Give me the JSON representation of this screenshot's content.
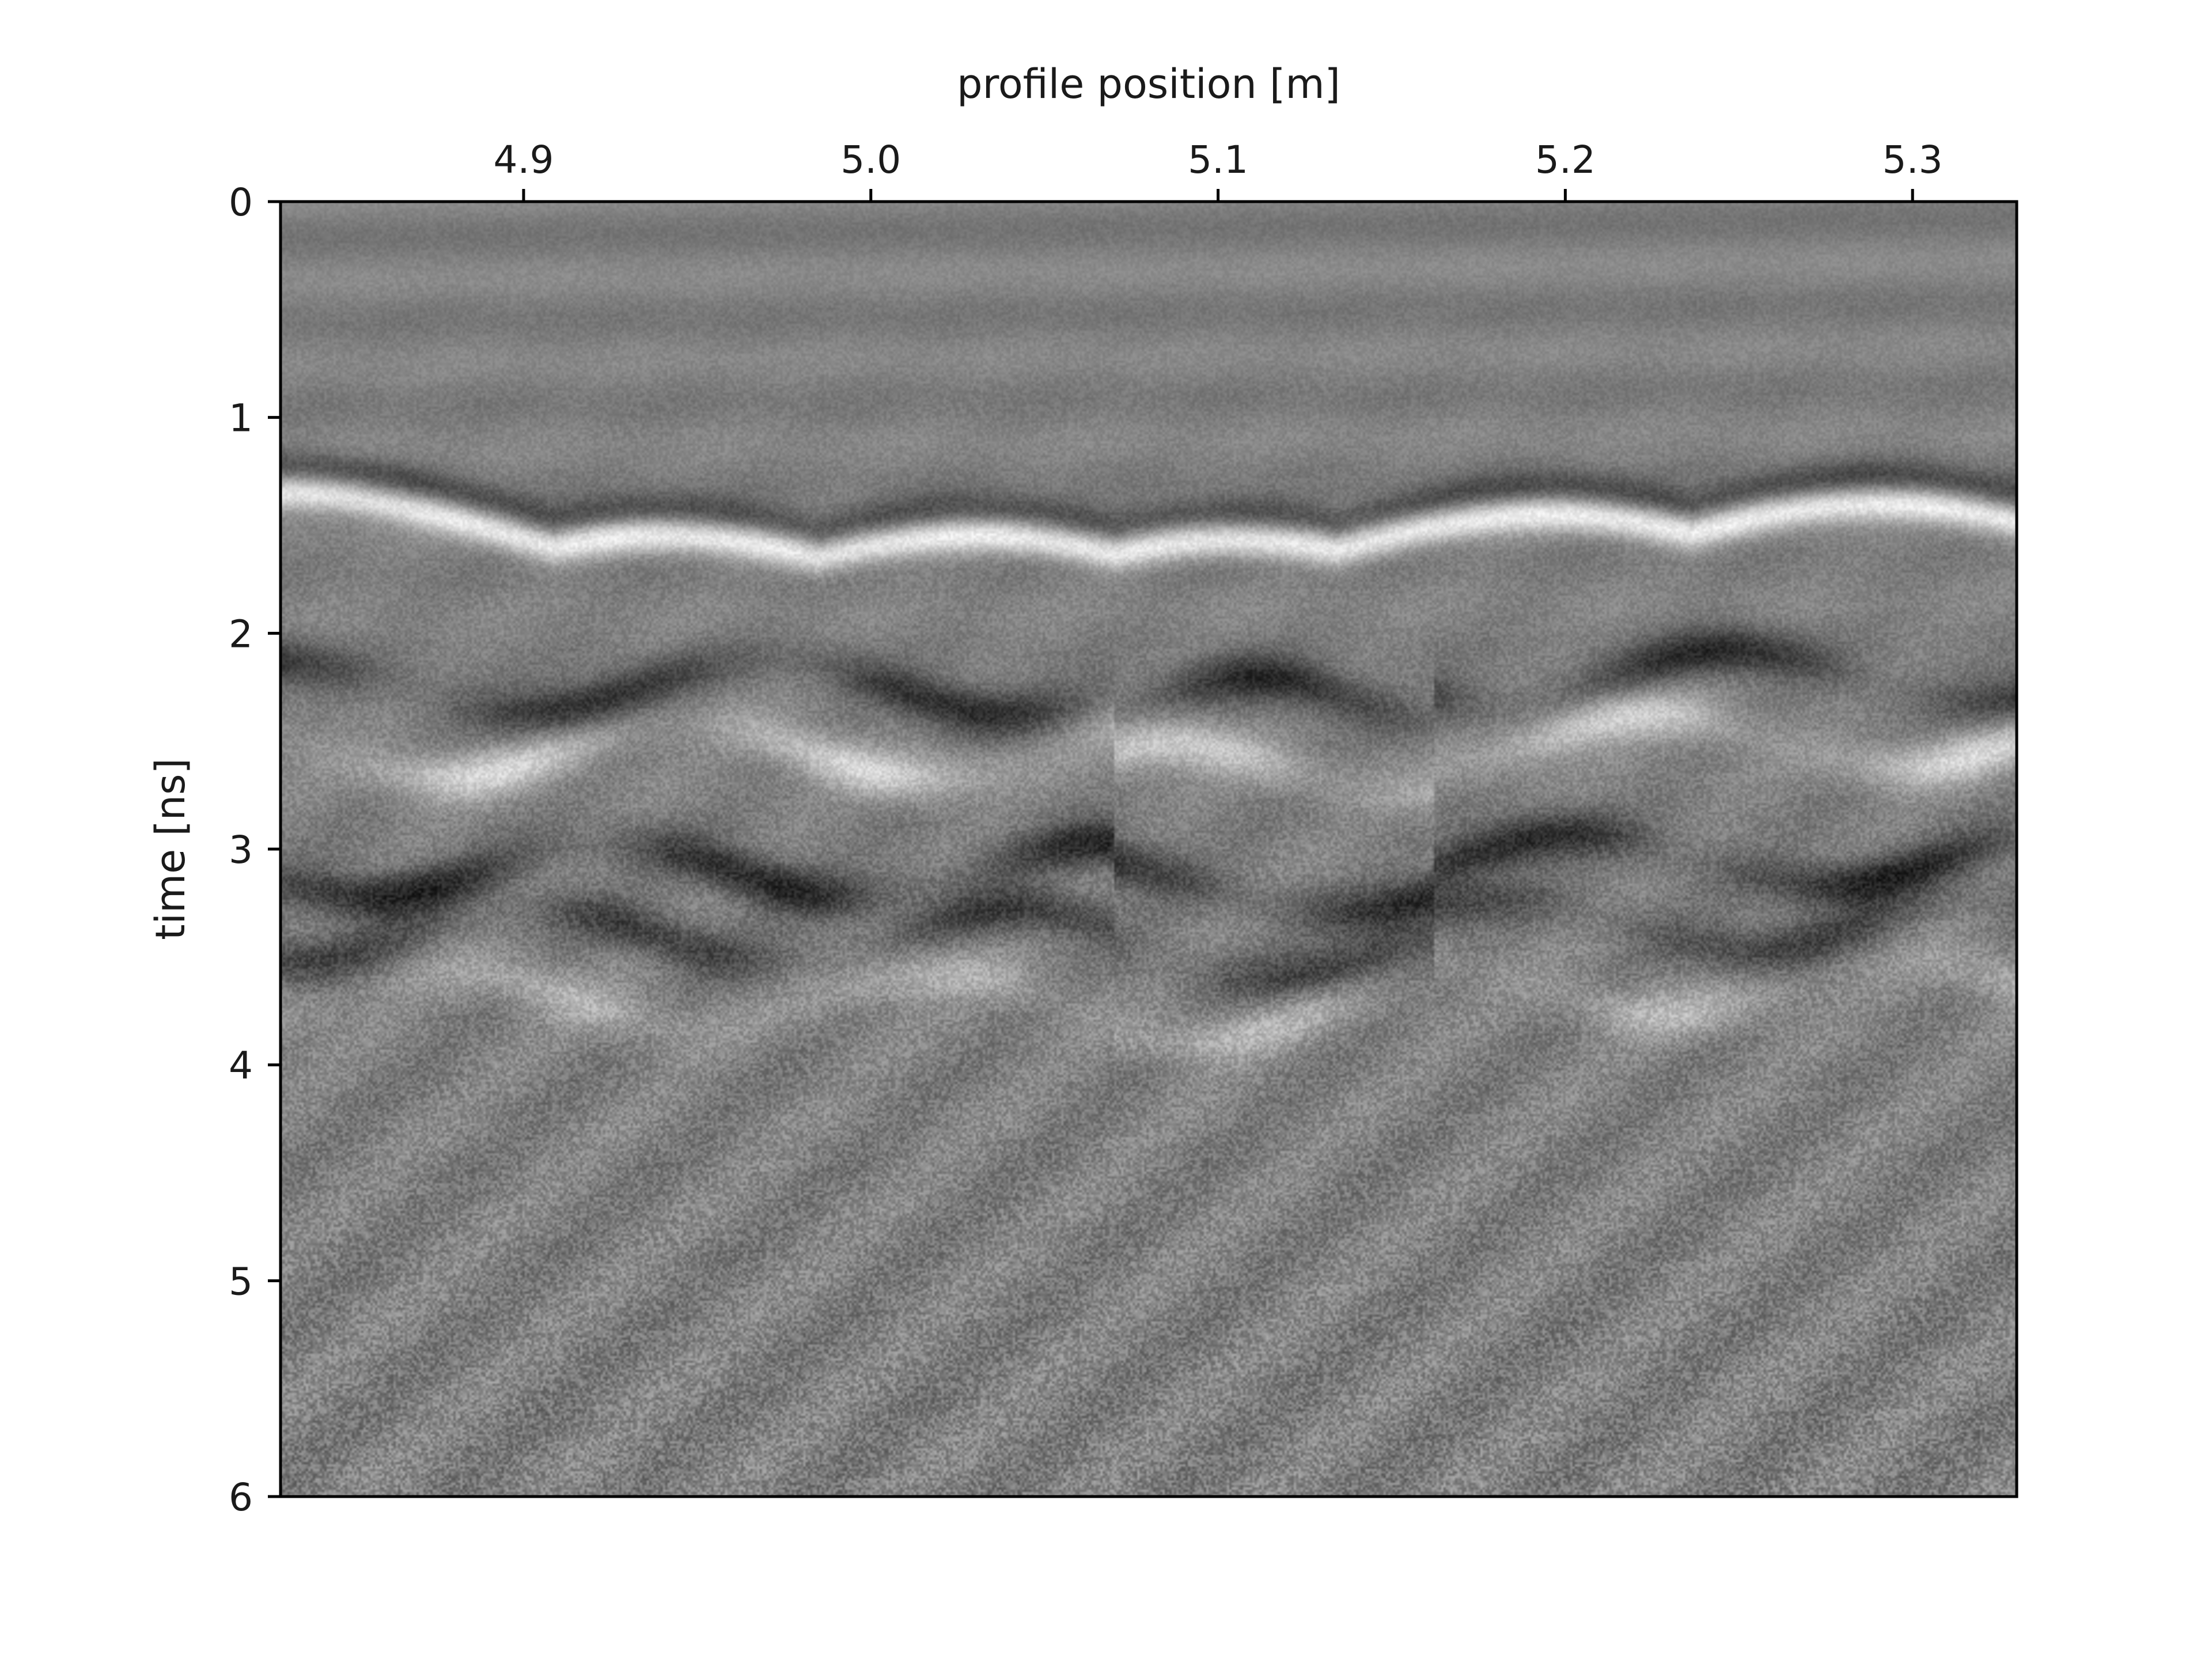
{
  "chart_data": {
    "type": "heatmap",
    "title": "",
    "xlabel": "profile position [m]",
    "ylabel": "time [ns]",
    "xlim": [
      4.83,
      5.33
    ],
    "ylim": [
      6,
      0
    ],
    "x_axis_position": "top",
    "y_axis_inverted": true,
    "xticks": [
      {
        "value": 4.9,
        "label": "4.9"
      },
      {
        "value": 5.0,
        "label": "5.0"
      },
      {
        "value": 5.1,
        "label": "5.1"
      },
      {
        "value": 5.2,
        "label": "5.2"
      },
      {
        "value": 5.3,
        "label": "5.3"
      }
    ],
    "yticks": [
      {
        "value": 0,
        "label": "0"
      },
      {
        "value": 1,
        "label": "1"
      },
      {
        "value": 2,
        "label": "2"
      },
      {
        "value": 3,
        "label": "3"
      },
      {
        "value": 4,
        "label": "4"
      },
      {
        "value": 5,
        "label": "5"
      },
      {
        "value": 6,
        "label": "6"
      }
    ],
    "colormap": "grayscale",
    "grid": false,
    "legend": "none",
    "segment_boundaries_m": [
      5.07,
      5.162
    ],
    "hyperbola_apexes": [
      {
        "x": 4.83,
        "t": 1.2
      },
      {
        "x": 4.94,
        "t": 1.4
      },
      {
        "x": 5.03,
        "t": 1.4
      },
      {
        "x": 5.105,
        "t": 1.42
      },
      {
        "x": 5.195,
        "t": 1.3
      },
      {
        "x": 5.29,
        "t": 1.25
      }
    ],
    "reflection_bands": [
      {
        "t": 1.5,
        "amplitude": 0.95
      },
      {
        "t": 2.25,
        "amplitude": -0.8
      },
      {
        "t": 2.55,
        "amplitude": 0.75
      },
      {
        "t": 3.1,
        "amplitude": -0.85
      },
      {
        "t": 3.4,
        "amplitude": -0.6
      },
      {
        "t": 3.7,
        "amplitude": 0.45
      }
    ]
  },
  "colors": {
    "background": "#ffffff",
    "axes": "#000000",
    "text": "#1a1a1a",
    "image_mid": "#808080"
  }
}
